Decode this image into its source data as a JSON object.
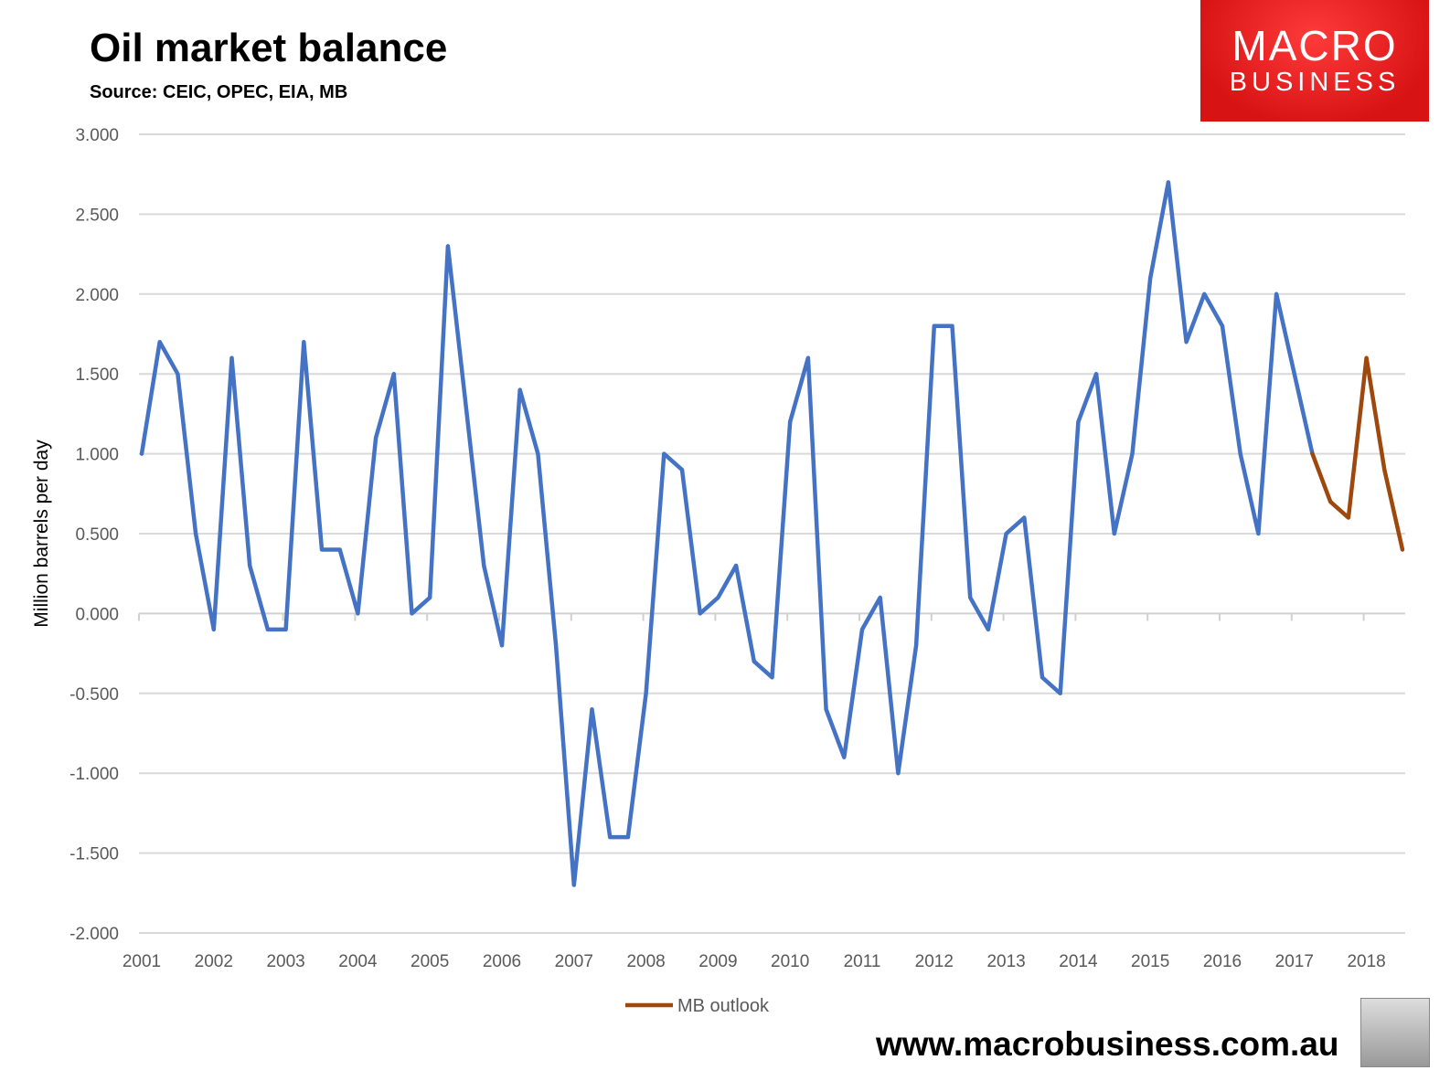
{
  "chart_data": {
    "type": "line",
    "title": "Oil market balance",
    "subtitle": "Source: CEIC, OPEC, EIA, MB",
    "ylabel": "Million barrels per day",
    "xlabel": "",
    "ylim": [
      -2,
      3
    ],
    "yticks": [
      "3.000",
      "2.500",
      "2.000",
      "1.500",
      "1.000",
      "0.500",
      "0.000",
      "-0.500",
      "-1.000",
      "-1.500",
      "-2.000"
    ],
    "ytick_values": [
      3,
      2.5,
      2,
      1.5,
      1,
      0.5,
      0,
      -0.5,
      -1,
      -1.5,
      -2
    ],
    "xticks": [
      "2001",
      "2002",
      "2003",
      "2004",
      "2005",
      "2006",
      "2007",
      "2008",
      "2009",
      "2010",
      "2011",
      "2012",
      "2013",
      "2014",
      "2015",
      "2016",
      "2017",
      "2018"
    ],
    "x_start": "2001 Q1",
    "frequency": "quarterly",
    "grid": true,
    "legend_position": "bottom",
    "series": [
      {
        "color": "#4472C4",
        "start_index": 0,
        "values": [
          1.0,
          1.7,
          1.5,
          0.5,
          -0.1,
          1.6,
          0.3,
          -0.1,
          -0.1,
          1.7,
          0.4,
          0.4,
          0.0,
          1.1,
          1.5,
          0.0,
          0.1,
          2.3,
          1.3,
          0.3,
          -0.2,
          1.4,
          1.0,
          -0.2,
          -1.7,
          -0.6,
          -1.4,
          -1.4,
          -0.5,
          1.0,
          0.9,
          0.0,
          0.1,
          0.3,
          -0.3,
          -0.4,
          1.2,
          1.6,
          -0.6,
          -0.9,
          -0.1,
          0.1,
          -1.0,
          -0.2,
          1.8,
          1.8,
          0.1,
          -0.1,
          0.5,
          0.6,
          -0.4,
          -0.5,
          1.2,
          1.5,
          0.5,
          1.0,
          2.1,
          2.7,
          1.7,
          2.0,
          1.8,
          1.0,
          0.5,
          2.0,
          1.5,
          1.0
        ]
      },
      {
        "name": "MB outlook",
        "color": "#9E480E",
        "start_index": 65,
        "values": [
          1.0,
          0.7,
          0.6,
          1.6,
          0.9,
          0.4
        ]
      }
    ]
  },
  "branding": {
    "logo_line1": "MACRO",
    "logo_line2": "BUSINESS",
    "url": "www.macrobusiness.com.au"
  }
}
